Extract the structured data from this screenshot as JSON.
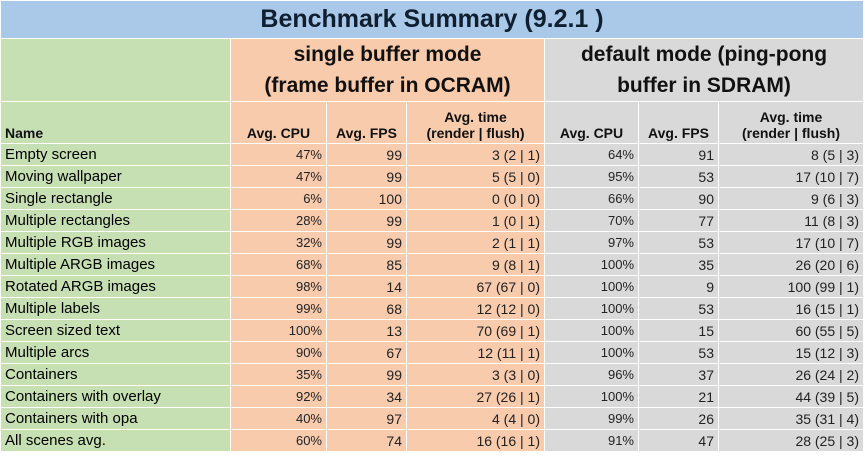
{
  "title": "Benchmark Summary (9.2.1 )",
  "mode_single": {
    "line1": "single buffer mode",
    "line2": "(frame buffer in OCRAM)"
  },
  "mode_default": {
    "line1": "default mode (ping-pong",
    "line2": "buffer in SDRAM)"
  },
  "columns": {
    "name": "Name",
    "avg_cpu": "Avg. CPU",
    "avg_fps": "Avg. FPS",
    "avg_time_line1": "Avg. time",
    "avg_time_line2": "(render | flush)"
  },
  "rows": [
    {
      "name": "Empty screen",
      "s_cpu": "47%",
      "s_fps": "99",
      "s_time": "3 (2 | 1)",
      "d_cpu": "64%",
      "d_fps": "91",
      "d_time": "8 (5 | 3)"
    },
    {
      "name": "Moving wallpaper",
      "s_cpu": "47%",
      "s_fps": "99",
      "s_time": "5 (5 | 0)",
      "d_cpu": "95%",
      "d_fps": "53",
      "d_time": "17 (10 | 7)"
    },
    {
      "name": "Single rectangle",
      "s_cpu": "6%",
      "s_fps": "100",
      "s_time": "0 (0 | 0)",
      "d_cpu": "66%",
      "d_fps": "90",
      "d_time": "9 (6 | 3)"
    },
    {
      "name": "Multiple rectangles",
      "s_cpu": "28%",
      "s_fps": "99",
      "s_time": "1 (0 | 1)",
      "d_cpu": "70%",
      "d_fps": "77",
      "d_time": "11 (8 | 3)"
    },
    {
      "name": "Multiple RGB images",
      "s_cpu": "32%",
      "s_fps": "99",
      "s_time": "2 (1 | 1)",
      "d_cpu": "97%",
      "d_fps": "53",
      "d_time": "17 (10 | 7)"
    },
    {
      "name": "Multiple ARGB images",
      "s_cpu": "68%",
      "s_fps": "85",
      "s_time": "9 (8 | 1)",
      "d_cpu": "100%",
      "d_fps": "35",
      "d_time": "26 (20 | 6)"
    },
    {
      "name": "Rotated ARGB images",
      "s_cpu": "98%",
      "s_fps": "14",
      "s_time": "67 (67 | 0)",
      "d_cpu": "100%",
      "d_fps": "9",
      "d_time": "100 (99 | 1)"
    },
    {
      "name": "Multiple labels",
      "s_cpu": "99%",
      "s_fps": "68",
      "s_time": "12 (12 | 0)",
      "d_cpu": "100%",
      "d_fps": "53",
      "d_time": "16 (15 | 1)"
    },
    {
      "name": "Screen sized text",
      "s_cpu": "100%",
      "s_fps": "13",
      "s_time": "70 (69 | 1)",
      "d_cpu": "100%",
      "d_fps": "15",
      "d_time": "60 (55 | 5)"
    },
    {
      "name": "Multiple arcs",
      "s_cpu": "90%",
      "s_fps": "67",
      "s_time": "12 (11 | 1)",
      "d_cpu": "100%",
      "d_fps": "53",
      "d_time": "15 (12 | 3)"
    },
    {
      "name": "Containers",
      "s_cpu": "35%",
      "s_fps": "99",
      "s_time": "3 (3 | 0)",
      "d_cpu": "96%",
      "d_fps": "37",
      "d_time": "26 (24 | 2)"
    },
    {
      "name": "Containers with overlay",
      "s_cpu": "92%",
      "s_fps": "34",
      "s_time": "27 (26 | 1)",
      "d_cpu": "100%",
      "d_fps": "21",
      "d_time": "44 (39 | 5)"
    },
    {
      "name": "Containers with opa",
      "s_cpu": "40%",
      "s_fps": "97",
      "s_time": "4 (4 | 0)",
      "d_cpu": "99%",
      "d_fps": "26",
      "d_time": "35 (31 | 4)"
    },
    {
      "name": "All scenes avg.",
      "s_cpu": "60%",
      "s_fps": "74",
      "s_time": "16 (16 | 1)",
      "d_cpu": "91%",
      "d_fps": "47",
      "d_time": "28 (25 | 3)"
    }
  ],
  "colors": {
    "title_bg": "#aac8e8",
    "single_bg": "#f8cbad",
    "default_bg": "#d9d9d9",
    "name_bg": "#c6e0b4"
  }
}
